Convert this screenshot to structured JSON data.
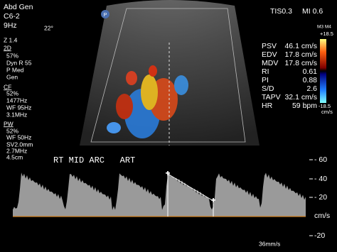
{
  "header": {
    "preset": "Abd Gen",
    "probe": "C6-2",
    "frame_rate": "9Hz",
    "angle": "22°",
    "tis": "TIS0.3",
    "mi": "MI 0.6"
  },
  "settings": [
    "Z 1.4",
    "2D",
    "57%",
    "Dyn R 55",
    "P Med",
    "Gen",
    "CF",
    "52%",
    "1477Hz",
    "WF 95Hz",
    "3.1MHz",
    "PW",
    "52%",
    "WF 50Hz",
    "SV2.0mm",
    "2.7MHz",
    "4.5cm"
  ],
  "color_bar": {
    "modes": "M3 M4",
    "top": "+18.5",
    "bottom": "-18.5",
    "unit": "cm/s"
  },
  "measurements": [
    [
      "PSV",
      "46.1 cm/s"
    ],
    [
      "EDV",
      "17.8 cm/s"
    ],
    [
      "MDV",
      "17.8 cm/s"
    ],
    [
      "RI",
      "0.61"
    ],
    [
      "PI",
      "0.88"
    ],
    [
      "S/D",
      "2.6"
    ],
    [
      "TAPV",
      "32.1 cm/s"
    ],
    [
      "HR",
      "59 bpm"
    ]
  ],
  "annotation": "RT MID ARC   ART",
  "spectral_scale": [
    "- 60",
    "- 40",
    "- 20",
    "cm/s",
    "-20"
  ],
  "sweep_speed": "36mm/s",
  "icon": "P"
}
